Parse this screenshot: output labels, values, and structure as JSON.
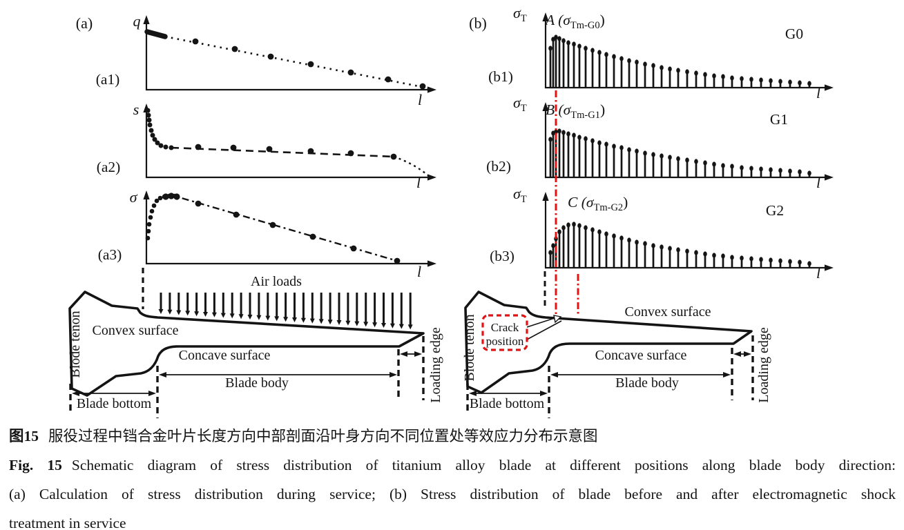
{
  "colors": {
    "ink": "#141414",
    "red": "#e41210",
    "background": "#ffffff"
  },
  "panel_a": {
    "tag": "(a)",
    "subplots": [
      {
        "tag": "(a1)",
        "ylabel": "q",
        "xlabel": "l"
      },
      {
        "tag": "(a2)",
        "ylabel": "s",
        "xlabel": "l"
      },
      {
        "tag": "(a3)",
        "ylabel": "σ",
        "xlabel": "l"
      }
    ],
    "blade": {
      "air_loads": "Air loads",
      "tenon": "Blode tenon",
      "convex": "Convex surface",
      "concave": "Concave surface",
      "body": "Blade body",
      "bottom": "Blade bottom",
      "loading_edge": "Loading edge"
    }
  },
  "panel_b": {
    "tag": "(b)",
    "subplots": [
      {
        "tag": "(b1)",
        "ylabel_base": "σ",
        "ylabel_sub": "T",
        "xlabel": "l",
        "point_prefix": "A (σ",
        "point_sub": "Tm-G0",
        "point_suffix": ")",
        "group": "G0"
      },
      {
        "tag": "(b2)",
        "ylabel_base": "σ",
        "ylabel_sub": "T",
        "xlabel": "l",
        "point_prefix": "B (σ",
        "point_sub": "Tm-G1",
        "point_suffix": ")",
        "group": "G1"
      },
      {
        "tag": "(b3)",
        "ylabel_base": "σ",
        "ylabel_sub": "T",
        "xlabel": "l",
        "point_prefix": "C (σ",
        "point_sub": "Tm-G2",
        "point_suffix": ")",
        "group": "G2"
      }
    ],
    "blade": {
      "tenon": "Blode tenon",
      "convex": "Convex surface",
      "concave": "Concave surface",
      "body": "Blade body",
      "bottom": "Blade bottom",
      "loading_edge": "Loading edge",
      "crack_line1": "Crack",
      "crack_line2": "position"
    }
  },
  "chart_data": [
    {
      "id": "a1",
      "type": "scatter",
      "title": "",
      "xlabel": "l",
      "ylabel": "q",
      "style": "dotted line, linearly decreasing, dense cluster at origin",
      "thick_start": [
        [
          1,
          84
        ],
        [
          27,
          77
        ]
      ],
      "line_end": [
        410,
        2
      ],
      "dots": [
        [
          71,
          70
        ],
        [
          128,
          59
        ],
        [
          180,
          48
        ],
        [
          238,
          37
        ],
        [
          296,
          25
        ],
        [
          350,
          15
        ],
        [
          400,
          5
        ]
      ]
    },
    {
      "id": "a2",
      "type": "scatter",
      "title": "",
      "xlabel": "l",
      "ylabel": "s",
      "style": "steep drop at origin then gentle dashed decline, drop at tip",
      "cluster": [
        [
          2,
          97
        ],
        [
          3,
          90
        ],
        [
          4,
          83
        ],
        [
          5,
          76
        ],
        [
          7,
          68
        ],
        [
          9,
          61
        ],
        [
          12,
          55
        ],
        [
          16,
          50
        ],
        [
          21,
          46
        ],
        [
          28,
          44
        ],
        [
          36,
          43
        ]
      ],
      "dots": [
        [
          75,
          44
        ],
        [
          126,
          43
        ],
        [
          178,
          41
        ],
        [
          238,
          38
        ],
        [
          296,
          35
        ],
        [
          358,
          30
        ]
      ],
      "tail_end": [
        410,
        1
      ]
    },
    {
      "id": "a3",
      "type": "scatter",
      "title": "",
      "xlabel": "l",
      "ylabel": "σ",
      "style": "sharp rise to peak near root then dash-dot decline to tip",
      "cluster": [
        [
          2,
          37
        ],
        [
          3,
          47
        ],
        [
          4,
          57
        ],
        [
          6,
          67
        ],
        [
          8,
          76
        ],
        [
          11,
          84
        ],
        [
          15,
          91
        ],
        [
          20,
          95
        ],
        [
          26,
          97
        ],
        [
          33,
          98
        ],
        [
          41,
          98
        ]
      ],
      "peak_dots": [
        [
          28,
          97
        ],
        [
          36,
          98
        ],
        [
          44,
          97
        ]
      ],
      "dots": [
        [
          75,
          87
        ],
        [
          130,
          71
        ],
        [
          183,
          56
        ],
        [
          241,
          39
        ],
        [
          300,
          22
        ],
        [
          363,
          4
        ]
      ]
    },
    {
      "id": "b1",
      "type": "stem",
      "title": "G0",
      "xlabel": "l",
      "ylabel": "σ_T",
      "annotation": "A (σ_Tm-G0)",
      "stem_dx": [
        7,
        11,
        15,
        20,
        26,
        33,
        41,
        49,
        58,
        68,
        78,
        88,
        99,
        110,
        121,
        132,
        144,
        156,
        168,
        180,
        192,
        205,
        218,
        231,
        244,
        257,
        270,
        284,
        298,
        312,
        326,
        340,
        354,
        368,
        382
      ],
      "stem_h": [
        57,
        70,
        73,
        71,
        68,
        65,
        63,
        60,
        57,
        54,
        51,
        48,
        45,
        42,
        39,
        37,
        34,
        32,
        29,
        27,
        25,
        23,
        21,
        19,
        17,
        16,
        14,
        13,
        12,
        11,
        10,
        9,
        8,
        7,
        6
      ]
    },
    {
      "id": "b2",
      "type": "stem",
      "title": "G1",
      "xlabel": "l",
      "ylabel": "σ_T",
      "annotation": "B (σ_Tm-G1)",
      "stem_dx": [
        7,
        11,
        15,
        20,
        26,
        33,
        41,
        49,
        58,
        68,
        78,
        88,
        99,
        110,
        121,
        132,
        144,
        156,
        168,
        180,
        192,
        205,
        218,
        231,
        244,
        257,
        270,
        284,
        298,
        312,
        326,
        340,
        354,
        368,
        382
      ],
      "stem_h": [
        55,
        64,
        66,
        67,
        65,
        63,
        61,
        58,
        56,
        53,
        50,
        48,
        45,
        43,
        40,
        38,
        35,
        33,
        31,
        29,
        27,
        25,
        23,
        21,
        19,
        17,
        16,
        14,
        13,
        12,
        11,
        10,
        9,
        8,
        6
      ]
    },
    {
      "id": "b3",
      "type": "stem",
      "title": "G2",
      "xlabel": "l",
      "ylabel": "σ_T",
      "annotation": "C (σ_Tm-G2)",
      "stem_dx": [
        7,
        11,
        15,
        20,
        26,
        33,
        41,
        49,
        58,
        68,
        78,
        88,
        99,
        110,
        121,
        132,
        144,
        156,
        168,
        180,
        192,
        205,
        218,
        231,
        244,
        257,
        270,
        284,
        298,
        312,
        326,
        340,
        354,
        368,
        382
      ],
      "stem_h": [
        22,
        32,
        42,
        52,
        58,
        62,
        63,
        61,
        58,
        55,
        52,
        49,
        46,
        43,
        40,
        37,
        35,
        32,
        30,
        28,
        26,
        24,
        22,
        20,
        18,
        17,
        15,
        14,
        13,
        12,
        11,
        10,
        9,
        8,
        6
      ]
    }
  ],
  "caption": {
    "line1_label": "图15",
    "line1_text": "服役过程中铛合金叶片长度方向中部剖面沿叶身方向不同位置处等效应力分布示意图",
    "line2_label": "Fig. 15",
    "line2_text": "Schematic diagram of stress distribution of titanium alloy blade at different positions along blade body direction:",
    "line3_text": "(a) Calculation of stress distribution during service; (b) Stress distribution of blade before and after electromagnetic shock",
    "line4_text": "treatment in service"
  }
}
